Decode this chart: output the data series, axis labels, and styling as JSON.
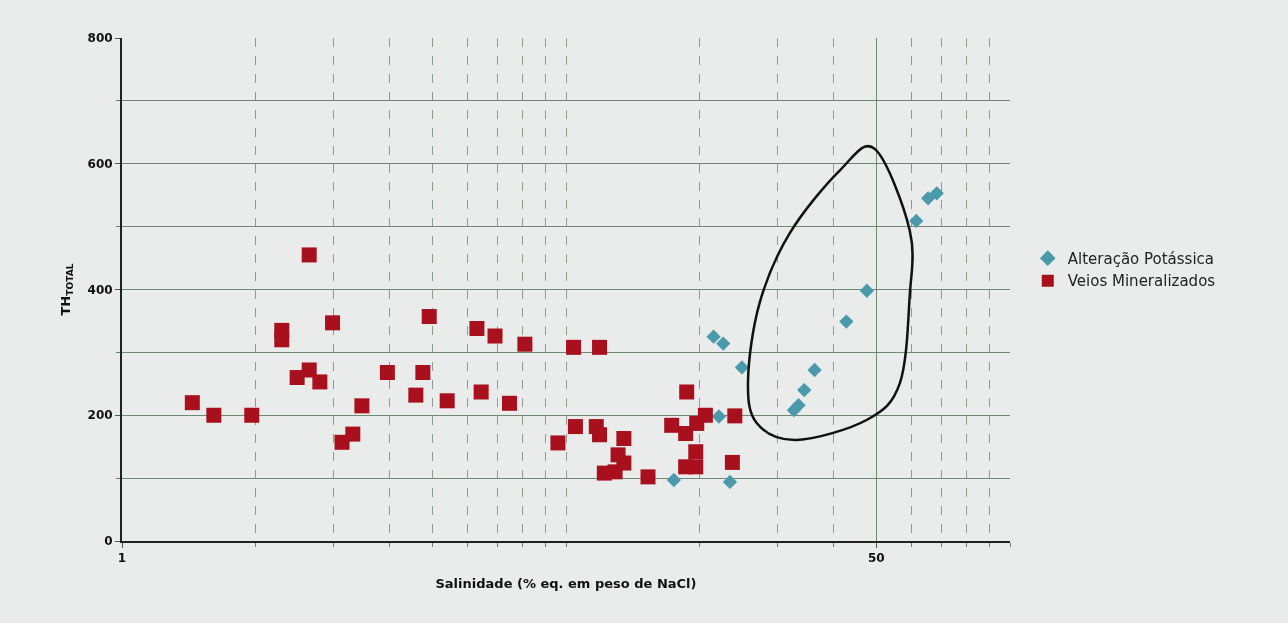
{
  "chart_data": {
    "type": "scatter",
    "xlabel": "Salinidade (% eq. em peso de NaCl)",
    "ylabel": "TH$_{TOTAL}$",
    "log": "x",
    "grid": true,
    "legend": "right",
    "xlim": [
      1,
      100
    ],
    "xticks": [
      1,
      {
        "value": 2,
        "label": null
      },
      {
        "value": 3,
        "label": null
      },
      {
        "value": 4,
        "label": null
      },
      {
        "value": 5,
        "label": null
      },
      {
        "value": 6,
        "label": null
      },
      {
        "value": 7,
        "label": null
      },
      {
        "value": 8,
        "label": null
      },
      {
        "value": 9,
        "label": null
      },
      {
        "value": 10,
        "label": null
      },
      {
        "value": 20,
        "label": null
      },
      {
        "value": 30,
        "label": null
      },
      {
        "value": 40,
        "label": null
      },
      50,
      {
        "value": 60,
        "label": null
      },
      {
        "value": 70,
        "label": null
      },
      {
        "value": 80,
        "label": null
      },
      {
        "value": 90,
        "label": null
      },
      {
        "value": 100,
        "label": null
      }
    ],
    "ylim": [
      0,
      800
    ],
    "yticks": [
      0,
      {
        "value": 100,
        "label": null
      },
      200,
      {
        "value": 300,
        "label": null
      },
      400,
      {
        "value": 500,
        "label": null
      },
      600,
      {
        "value": 700,
        "label": null
      },
      800
    ],
    "series": [
      {
        "name": "Alteração Potássica",
        "color": "#4a9aab",
        "marker": "diamond",
        "x": [
          21.5,
          22.6,
          24.9,
          17.5,
          23.4,
          22.1,
          32.6,
          33.4,
          34.4,
          36.3,
          42.8,
          47.6,
          61.5,
          65.4,
          68.4
        ],
        "values": [
          325,
          314,
          276,
          97,
          94,
          198,
          208,
          216,
          240,
          272,
          349,
          398,
          509,
          545,
          553
        ]
      },
      {
        "name": "Veios Mineralizados",
        "color": "#a8101e",
        "marker": "square",
        "x": [
          1.44,
          1.61,
          1.96,
          2.29,
          2.29,
          2.64,
          2.48,
          2.64,
          2.79,
          2.98,
          3.13,
          3.31,
          3.47,
          3.96,
          4.59,
          4.76,
          4.92,
          5.4,
          6.3,
          6.92,
          6.44,
          7.46,
          8.08,
          10.4,
          11.9,
          18.7,
          9.59,
          10.5,
          11.7,
          11.9,
          13.5,
          13.1,
          13.5,
          12.2,
          12.9,
          15.3,
          17.3,
          18.6,
          20.6,
          19.7,
          24.0,
          19.6,
          19.6,
          18.6,
          23.7
        ],
        "values": [
          220,
          200,
          200,
          335,
          320,
          455,
          260,
          272,
          253,
          347,
          157,
          170,
          215,
          268,
          232,
          268,
          357,
          223,
          338,
          326,
          237,
          219,
          313,
          308,
          308,
          237,
          156,
          182,
          182,
          169,
          163,
          137,
          124,
          108,
          110,
          102,
          184,
          171,
          200,
          187,
          199,
          142,
          118,
          118,
          125
        ]
      }
    ]
  }
}
